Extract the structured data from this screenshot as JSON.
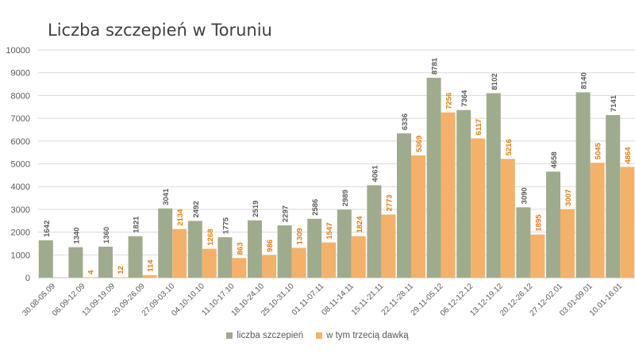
{
  "chart_data": {
    "type": "bar",
    "title": "Liczba szczepień w Toruniu",
    "categories": [
      "30.08-05.09",
      "06.09-12.09",
      "13.09-19.09",
      "20.09-26.09",
      "27.09-03.10",
      "04.10-10.10",
      "11.10-17.10",
      "18.10-24.10",
      "25.10-31.10",
      "01.11-07.11",
      "08.11-14.11",
      "15.11-21.11",
      "22.11-28.11",
      "29.11-05.12",
      "06.12-12.12",
      "13.12-19.12",
      "20.12-26.12",
      "27.12-02.01",
      "03.01-09.01",
      "10.01-16.01"
    ],
    "series": [
      {
        "name": "liczba szczepień",
        "color": "#9fab8d",
        "label_color": "#595959",
        "values": [
          1642,
          1340,
          1360,
          1821,
          3041,
          2492,
          1775,
          2519,
          2297,
          2586,
          2989,
          4061,
          6336,
          8781,
          7364,
          8102,
          3090,
          4658,
          8140,
          7141
        ]
      },
      {
        "name": "w tym trzecią dawką",
        "color": "#f4b16a",
        "label_color": "#e07b0e",
        "values": [
          null,
          4,
          12,
          114,
          2134,
          1268,
          863,
          986,
          1309,
          1547,
          1824,
          2773,
          5369,
          7256,
          6117,
          5216,
          1895,
          3007,
          5045,
          4864
        ]
      }
    ],
    "ylim": [
      0,
      10000
    ],
    "yticks": [
      0,
      1000,
      2000,
      3000,
      4000,
      5000,
      6000,
      7000,
      8000,
      9000,
      10000
    ],
    "grid": true,
    "legend_position": "bottom"
  }
}
